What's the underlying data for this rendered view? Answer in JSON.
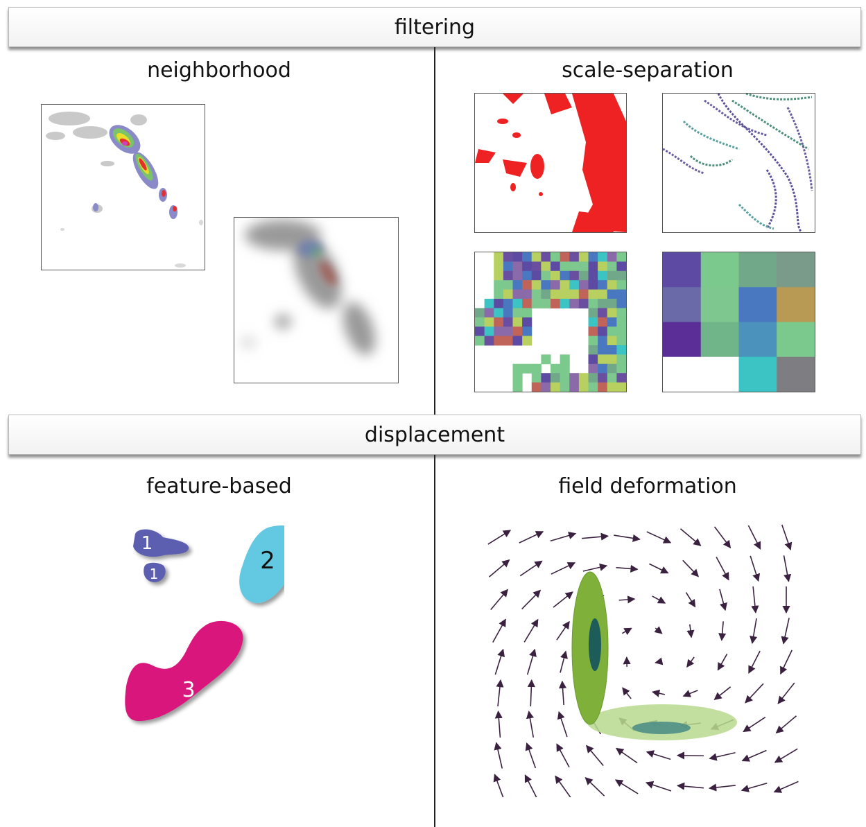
{
  "sections": {
    "top": {
      "banner": "filtering",
      "left_heading": "neighborhood",
      "right_heading": "scale-separation"
    },
    "bottom": {
      "banner": "displacement",
      "left_heading": "feature-based",
      "right_heading": "field deformation"
    }
  },
  "features": [
    {
      "label": "1",
      "color": "#5b5fb0"
    },
    {
      "label": "1",
      "color": "#5b5fb0"
    },
    {
      "label": "2",
      "color": "#63c9e2"
    },
    {
      "label": "3",
      "color": "#d8137c"
    }
  ],
  "colors": {
    "vector_arrow": "#3b2140",
    "ellipse_vertical": "#7fb13a",
    "ellipse_horizontal": "#b9d98e",
    "ellipse_core": "#1e5c5a",
    "scale_red": "#ee2222"
  },
  "coarse_grid_colors": [
    [
      "#5d4aa3",
      "#7cc98d",
      "#72a88a",
      "#7a9a8a"
    ],
    [
      "#6a6aa8",
      "#7ec88f",
      "#4a78c0",
      "#b89a55"
    ],
    [
      "#5a2e96",
      "#70b48a",
      "#4b93bd",
      "#7cc98d"
    ],
    [
      "#ffffff",
      "#ffffff",
      "#3cc4c4",
      "#7e7e82"
    ]
  ]
}
